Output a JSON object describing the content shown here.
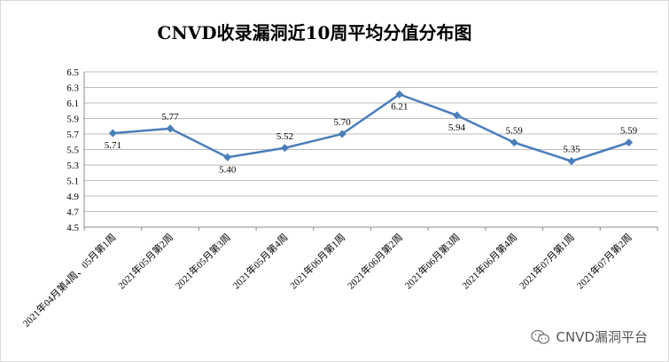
{
  "chart_data": {
    "type": "line",
    "title": "CNVD收录漏洞近10周平均分值分布图",
    "categories": [
      "2021年04月第4周、05月第1周",
      "2021年05月第2周",
      "2021年05月第3周",
      "2021年05月第4周",
      "2021年06月第1周",
      "2021年06月第2周",
      "2021年06月第3周",
      "2021年06月第4周",
      "2021年07月第1周",
      "2021年07月第2周"
    ],
    "values": [
      5.71,
      5.77,
      5.4,
      5.52,
      5.7,
      6.21,
      5.94,
      5.59,
      5.35,
      5.59
    ],
    "value_labels": [
      "5.71",
      "5.77",
      "5.40",
      "5.52",
      "5.70",
      "6.21",
      "5.94",
      "5.59",
      "5.35",
      "5.59"
    ],
    "ylim": [
      4.5,
      6.5
    ],
    "yticks": [
      "4.5",
      "4.7",
      "4.9",
      "5.1",
      "5.3",
      "5.5",
      "5.7",
      "5.9",
      "6.1",
      "6.3",
      "6.5"
    ],
    "grid": true,
    "legend": "none",
    "xlabel": "",
    "ylabel": "",
    "line_color": "#4a7ebb"
  },
  "watermark": {
    "text": "CNVD漏洞平台",
    "icon": "wechat-icon"
  }
}
